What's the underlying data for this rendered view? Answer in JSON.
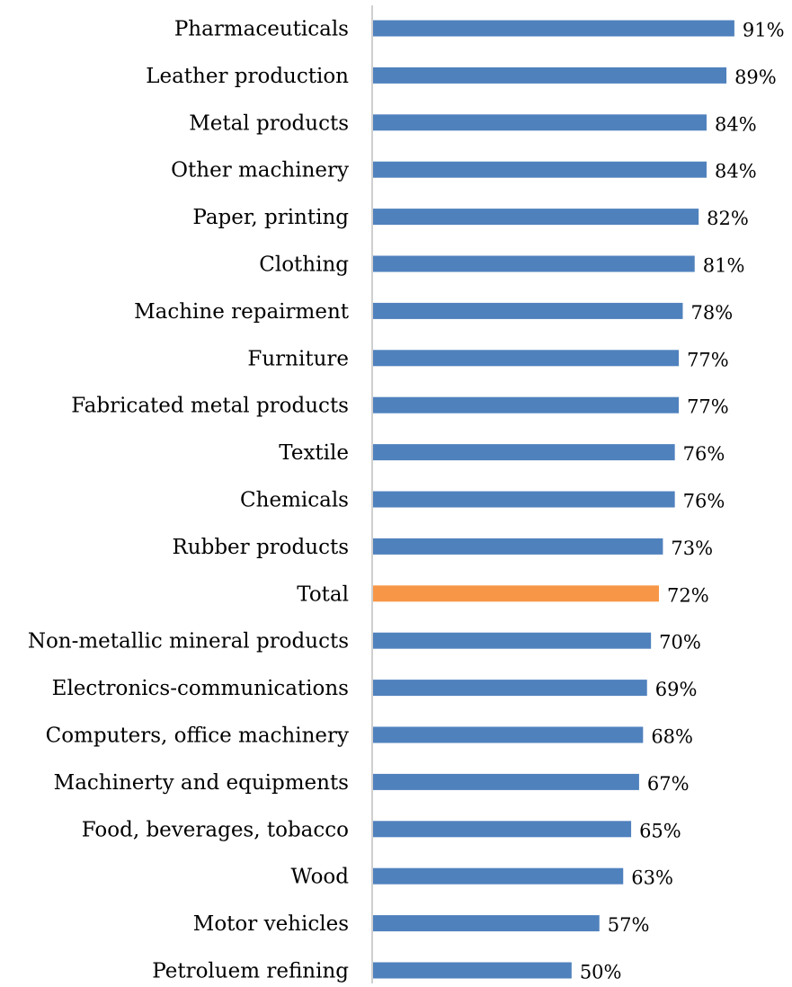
{
  "chart_data": {
    "type": "bar",
    "orientation": "horizontal",
    "title": "",
    "xlabel": "",
    "ylabel": "",
    "xlim": [
      0,
      100
    ],
    "value_format": "percent",
    "grid": false,
    "legend": "none",
    "colors": {
      "default_bar": "#4F81BD",
      "highlight_bar": "#F79646",
      "axis_line": "#BFBFBF"
    },
    "highlight_category": "Total",
    "categories": [
      "Pharmaceuticals",
      "Leather production",
      "Metal products",
      "Other machinery",
      "Paper, printing",
      "Clothing",
      "Machine repairment",
      "Furniture",
      "Fabricated metal products",
      "Textile",
      "Chemicals",
      "Rubber products",
      "Total",
      "Non-metallic mineral products",
      "Electronics-communications",
      "Computers, office machinery",
      "Machinerty and equipments",
      "Food, beverages, tobacco",
      "Wood",
      "Motor vehicles",
      "Petroluem refining"
    ],
    "values": [
      91,
      89,
      84,
      84,
      82,
      81,
      78,
      77,
      77,
      76,
      76,
      73,
      72,
      70,
      69,
      68,
      67,
      65,
      63,
      57,
      50
    ],
    "value_labels": [
      "91%",
      "89%",
      "84%",
      "84%",
      "82%",
      "81%",
      "78%",
      "77%",
      "77%",
      "76%",
      "76%",
      "73%",
      "72%",
      "70%",
      "69%",
      "68%",
      "67%",
      "65%",
      "63%",
      "57%",
      "50%"
    ]
  }
}
